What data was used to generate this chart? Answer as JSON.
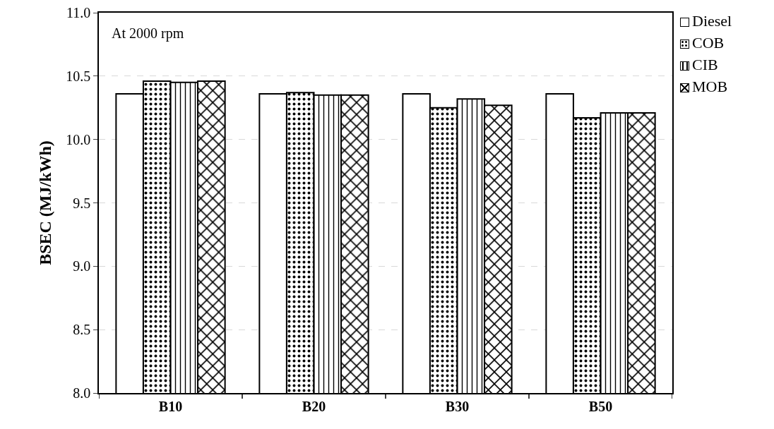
{
  "chart_data": {
    "type": "bar",
    "ylabel": "BSEC (MJ/kWh)",
    "annotations": [
      "At 2000 rpm"
    ],
    "categories": [
      "B10",
      "B20",
      "B30",
      "B50"
    ],
    "series": [
      {
        "name": "Diesel",
        "color": "#ffffff",
        "values": [
          10.36,
          10.36,
          10.36,
          10.36
        ]
      },
      {
        "name": "COB",
        "color": "#000000",
        "values": [
          10.46,
          10.37,
          10.25,
          10.17
        ]
      },
      {
        "name": "CIB",
        "color": "#000000",
        "values": [
          10.45,
          10.35,
          10.32,
          10.21
        ]
      },
      {
        "name": "MOB",
        "color": "#000000",
        "values": [
          10.46,
          10.35,
          10.27,
          10.21
        ]
      }
    ],
    "ylim": [
      8.0,
      11.0
    ],
    "yticks": [
      {
        "value": 8,
        "label": "8.0"
      },
      {
        "value": 8.5,
        "label": "8.5"
      },
      {
        "value": 9,
        "label": "9.0"
      },
      {
        "value": 9.5,
        "label": "9.5"
      },
      {
        "value": 10,
        "label": "10.0"
      },
      {
        "value": 10.5,
        "label": "10.5"
      },
      {
        "value": 11,
        "label": "11.0"
      }
    ],
    "grid": "y",
    "legend": "top right"
  }
}
